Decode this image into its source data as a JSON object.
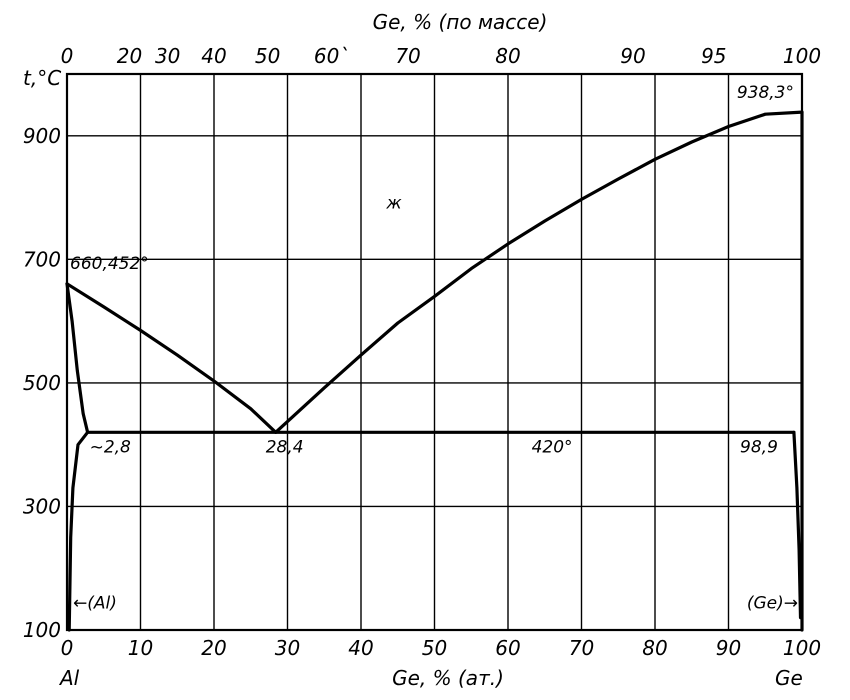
{
  "chart_data": {
    "type": "line",
    "title": "",
    "top_axis_title": "Ge, % (по массе)",
    "top_axis_ticks": [
      {
        "label": "0",
        "at": 0
      },
      {
        "label": "20",
        "at": 8.5
      },
      {
        "label": "30",
        "at": 13.7
      },
      {
        "label": "40",
        "at": 20.0
      },
      {
        "label": "50",
        "at": 27.3
      },
      {
        "label": "60`",
        "at": 36.0
      },
      {
        "label": "70",
        "at": 46.4
      },
      {
        "label": "80",
        "at": 60.0
      },
      {
        "label": "90",
        "at": 77.0
      },
      {
        "label": "95",
        "at": 88.0
      },
      {
        "label": "100",
        "at": 100
      }
    ],
    "y_axis_title": "t,°C",
    "y_ticks": [
      "100",
      "300",
      "500",
      "700",
      "900"
    ],
    "ylim": [
      100,
      1000
    ],
    "x_axis_title": "Ge, % (ат.)",
    "x_ticks": [
      "0",
      "10",
      "20",
      "30",
      "40",
      "50",
      "60",
      "70",
      "80",
      "90",
      "100"
    ],
    "xlim": [
      0,
      100
    ],
    "x_end_labels": {
      "left": "Al",
      "right": "Ge"
    },
    "grid": true,
    "series": [
      {
        "points": [
          [
            0,
            660.452
          ],
          [
            5,
            623
          ],
          [
            10,
            585
          ],
          [
            15,
            545
          ],
          [
            20,
            503
          ],
          [
            25,
            458
          ],
          [
            28.4,
            420
          ]
        ]
      },
      {
        "points": [
          [
            28.4,
            420
          ],
          [
            35,
            492
          ],
          [
            40,
            545
          ],
          [
            45,
            597
          ],
          [
            50,
            640
          ],
          [
            55,
            685
          ],
          [
            60,
            725
          ],
          [
            65,
            762
          ],
          [
            70,
            797
          ],
          [
            75,
            830
          ],
          [
            80,
            862
          ],
          [
            85,
            890
          ],
          [
            90,
            915
          ],
          [
            95,
            935
          ],
          [
            100,
            938.3
          ]
        ]
      },
      {
        "points": [
          [
            0,
            660.452
          ],
          [
            0.7,
            600
          ],
          [
            1.4,
            520
          ],
          [
            2.2,
            450
          ],
          [
            2.8,
            420
          ]
        ]
      },
      {
        "points": [
          [
            2.8,
            420
          ],
          [
            98.9,
            420
          ]
        ]
      },
      {
        "points": [
          [
            2.8,
            420
          ],
          [
            1.5,
            400
          ],
          [
            0.8,
            330
          ],
          [
            0.5,
            250
          ],
          [
            0.3,
            100
          ]
        ]
      },
      {
        "points": [
          [
            98.9,
            420
          ],
          [
            99.3,
            330
          ],
          [
            99.6,
            230
          ],
          [
            99.8,
            120
          ]
        ]
      },
      {
        "points": [
          [
            100,
            938.3
          ],
          [
            100,
            100
          ]
        ]
      }
    ],
    "annotations": [
      {
        "text": "660,452°",
        "x": 0,
        "y": 660.452
      },
      {
        "text": "938,3°",
        "x": 100,
        "y": 938.3
      },
      {
        "text": "ж",
        "x": 44.5,
        "y": 795
      },
      {
        "text": "~2,8",
        "x": 2.8,
        "y": 420
      },
      {
        "text": "28,4",
        "x": 28.4,
        "y": 420
      },
      {
        "text": "420°",
        "x": 66,
        "y": 420
      },
      {
        "text": "98,9",
        "x": 98.9,
        "y": 420
      },
      {
        "text": "←(Al)",
        "x": 0,
        "y": 135
      },
      {
        "text": "(Ge)→",
        "x": 100,
        "y": 135
      }
    ]
  }
}
